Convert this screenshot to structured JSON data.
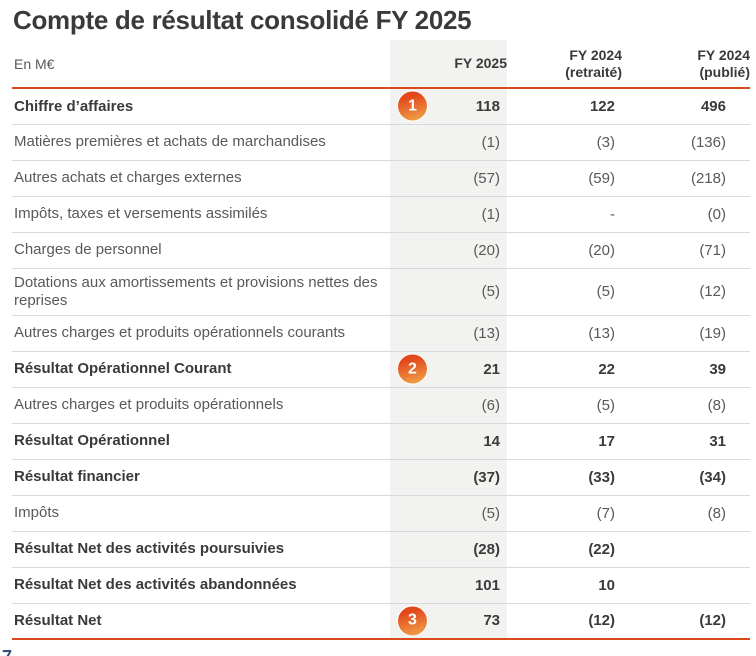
{
  "title": "Compte de résultat consolidé FY 2025",
  "table": {
    "unit_label": "En M€",
    "columns": [
      {
        "line1": "FY 2025",
        "line2": ""
      },
      {
        "line1": "FY 2024",
        "line2": "(retraité)"
      },
      {
        "line1": "FY 2024",
        "line2": "(publié)"
      }
    ],
    "rows": [
      {
        "label": "Chiffre d’affaires",
        "bold": true,
        "badge": "1",
        "values": [
          "118",
          "122",
          "496"
        ]
      },
      {
        "label": "Matières premières et achats de marchandises",
        "bold": false,
        "values": [
          "(1)",
          "(3)",
          "(136)"
        ]
      },
      {
        "label": "Autres achats et charges externes",
        "bold": false,
        "values": [
          "(57)",
          "(59)",
          "(218)"
        ]
      },
      {
        "label": "Impôts, taxes et versements assimilés",
        "bold": false,
        "values": [
          "(1)",
          "-",
          "(0)"
        ]
      },
      {
        "label": "Charges de personnel",
        "bold": false,
        "values": [
          "(20)",
          "(20)",
          "(71)"
        ]
      },
      {
        "label": "Dotations aux amortissements et provisions nettes des reprises",
        "bold": false,
        "values": [
          "(5)",
          "(5)",
          "(12)"
        ]
      },
      {
        "label": "Autres charges et produits opérationnels courants",
        "bold": false,
        "values": [
          "(13)",
          "(13)",
          "(19)"
        ]
      },
      {
        "label": "Résultat Opérationnel Courant",
        "bold": true,
        "badge": "2",
        "values": [
          "21",
          "22",
          "39"
        ]
      },
      {
        "label": "Autres charges et produits opérationnels",
        "bold": false,
        "values": [
          "(6)",
          "(5)",
          "(8)"
        ]
      },
      {
        "label": "Résultat Opérationnel",
        "bold": true,
        "values": [
          "14",
          "17",
          "31"
        ]
      },
      {
        "label": "Résultat financier",
        "bold": true,
        "values": [
          "(37)",
          "(33)",
          "(34)"
        ]
      },
      {
        "label": "Impôts",
        "bold": false,
        "values": [
          "(5)",
          "(7)",
          "(8)"
        ]
      },
      {
        "label": "Résultat Net des activités poursuivies",
        "bold": true,
        "values": [
          "(28)",
          "(22)",
          ""
        ]
      },
      {
        "label": "Résultat Net des activités abandonnées",
        "bold": true,
        "values": [
          "101",
          "10",
          ""
        ]
      },
      {
        "label": "Résultat Net",
        "bold": true,
        "badge": "3",
        "values": [
          "73",
          "(12)",
          "(12)"
        ]
      }
    ]
  },
  "footer": {
    "page_number_fragment": "7"
  },
  "colors": {
    "accent_orange": "#dc4a1c",
    "badge_gradient_top": "#e2481c",
    "badge_gradient_bottom": "#f0a24a",
    "column_shade": "#f2f2f1",
    "separator_gray": "#d9d9d9",
    "text_dark": "#3a3a39",
    "text_gray": "#595958",
    "page_number_navy": "#31517c"
  }
}
